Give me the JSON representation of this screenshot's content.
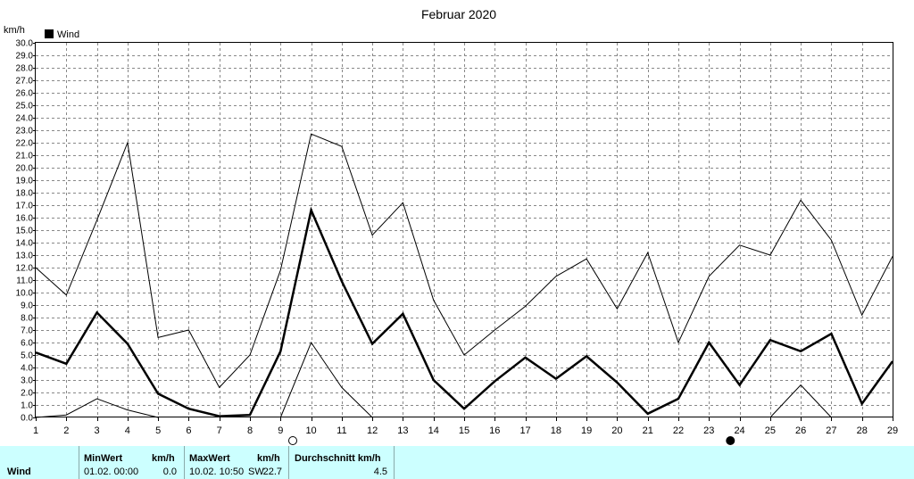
{
  "chart_data": {
    "type": "line",
    "title": "Februar 2020",
    "ylabel": "km/h",
    "ylim": [
      0,
      30
    ],
    "y_ticks": [
      "0.0",
      "1.0",
      "2.0",
      "3.0",
      "4.0",
      "5.0",
      "6.0",
      "7.0",
      "8.0",
      "9.0",
      "10.0",
      "11.0",
      "12.0",
      "13.0",
      "14.0",
      "15.0",
      "16.0",
      "17.0",
      "18.0",
      "19.0",
      "20.0",
      "21.0",
      "22.0",
      "23.0",
      "24.0",
      "25.0",
      "26.0",
      "27.0",
      "28.0",
      "29.0",
      "30.0"
    ],
    "x": [
      "1",
      "2",
      "3",
      "4",
      "5",
      "6",
      "7",
      "8",
      "9",
      "10",
      "11",
      "12",
      "13",
      "14",
      "15",
      "16",
      "17",
      "18",
      "19",
      "20",
      "21",
      "22",
      "23",
      "24",
      "25",
      "26",
      "27",
      "28",
      "29"
    ],
    "grid": true,
    "legend": {
      "label": "Wind",
      "color": "#000000",
      "placement": "top-left"
    },
    "series": [
      {
        "role": "max",
        "width": 1,
        "values": [
          12.0,
          9.8,
          15.8,
          22.0,
          6.4,
          7.0,
          2.4,
          5.0,
          11.8,
          22.7,
          21.7,
          14.6,
          17.2,
          9.4,
          5.0,
          7.0,
          8.9,
          11.3,
          12.7,
          8.7,
          13.2,
          6.0,
          11.3,
          13.8,
          13.0,
          17.4,
          14.2,
          8.2,
          12.9
        ]
      },
      {
        "role": "average",
        "width": 2.5,
        "values": [
          5.2,
          4.3,
          8.4,
          5.9,
          1.9,
          0.7,
          0.1,
          0.2,
          5.3,
          16.6,
          10.9,
          5.9,
          8.3,
          3.0,
          0.7,
          2.9,
          4.8,
          3.1,
          4.9,
          2.8,
          0.3,
          1.5,
          6.0,
          2.6,
          6.2,
          5.3,
          6.7,
          1.1,
          4.5
        ]
      },
      {
        "role": "min",
        "width": 1,
        "values": [
          0.0,
          0.2,
          1.5,
          0.6,
          0.0,
          null,
          null,
          null,
          0.0,
          6.0,
          2.4,
          0.0,
          null,
          null,
          null,
          null,
          null,
          null,
          null,
          null,
          null,
          null,
          null,
          null,
          0.0,
          2.6,
          0.0,
          null,
          null
        ]
      }
    ],
    "moon_markers": [
      {
        "phase": "full-moon",
        "day": 9.4
      },
      {
        "phase": "new-moon",
        "day": 23.7
      }
    ]
  },
  "footer": {
    "row_label": "Wind",
    "min_header": "MinWert",
    "min_unit": "km/h",
    "min_time": "01.02.  00:00",
    "min_value": "0.0",
    "max_header": "MaxWert",
    "max_unit": "km/h",
    "max_time": "10.02.  10:50",
    "max_dir": "SW",
    "max_value": "22.7",
    "avg_header": "Durchschnitt km/h",
    "avg_value": "4.5"
  }
}
